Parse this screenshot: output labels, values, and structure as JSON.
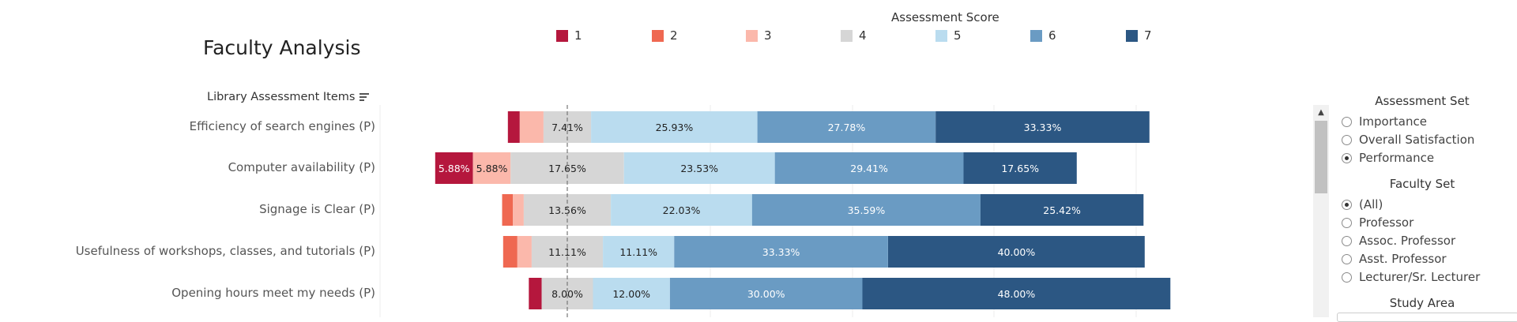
{
  "title": "Faculty Analysis",
  "legend": {
    "title": "Assessment Score",
    "items": [
      {
        "label": "1",
        "color": "#b5173d"
      },
      {
        "label": "2",
        "color": "#ef6851"
      },
      {
        "label": "3",
        "color": "#fbb8ab"
      },
      {
        "label": "4",
        "color": "#d6d6d6"
      },
      {
        "label": "5",
        "color": "#badcef"
      },
      {
        "label": "6",
        "color": "#6a9bc3"
      },
      {
        "label": "7",
        "color": "#2c5783"
      }
    ]
  },
  "rows_header": "Library Assessment Items",
  "chart_data": {
    "type": "bar",
    "orientation": "horizontal",
    "stacked": true,
    "diverging": true,
    "categories": [
      "Efficiency of search engines (P)",
      "Computer availability (P)",
      "Signage is Clear (P)",
      "Usefulness of workshops, classes, and tutorials (P)",
      "Opening hours meet my needs (P)"
    ],
    "series": [
      {
        "name": "1",
        "values": [
          1.85,
          5.88,
          0.0,
          0.0,
          2.0
        ]
      },
      {
        "name": "2",
        "values": [
          0.0,
          0.0,
          1.69,
          2.22,
          0.0
        ]
      },
      {
        "name": "3",
        "values": [
          3.7,
          5.88,
          1.69,
          2.22,
          0.0
        ]
      },
      {
        "name": "4",
        "values": [
          7.41,
          17.65,
          13.56,
          11.11,
          8.0
        ]
      },
      {
        "name": "5",
        "values": [
          25.93,
          23.53,
          22.03,
          11.11,
          12.0
        ]
      },
      {
        "name": "6",
        "values": [
          27.78,
          29.41,
          35.59,
          33.33,
          30.0
        ]
      },
      {
        "name": "7",
        "values": [
          33.33,
          17.65,
          25.42,
          40.0,
          48.0
        ]
      }
    ],
    "data_labels": [
      [
        "",
        "",
        "",
        "7.41%",
        "25.93%",
        "27.78%",
        "33.33%"
      ],
      [
        "5.88%",
        "",
        "5.88%",
        "17.65%",
        "23.53%",
        "29.41%",
        "17.65%"
      ],
      [
        "",
        "",
        "",
        "13.56%",
        "22.03%",
        "35.59%",
        "25.42%"
      ],
      [
        "",
        "",
        "",
        "11.11%",
        "11.11%",
        "33.33%",
        "40.00%"
      ],
      [
        "",
        "",
        "",
        "8.00%",
        "12.00%",
        "30.00%",
        "48.00%"
      ]
    ],
    "zero_line": "dashed, through middle of score 4"
  },
  "panel": {
    "assessment_set": {
      "title": "Assessment Set",
      "options": [
        "Importance",
        "Overall Satisfaction",
        "Performance"
      ],
      "selected": "Performance"
    },
    "faculty_set": {
      "title": "Faculty Set",
      "options": [
        "(All)",
        "Professor",
        "Assoc. Professor",
        "Asst. Professor",
        "Lecturer/Sr. Lecturer"
      ],
      "selected": "(All)"
    },
    "study_area": {
      "title": "Study Area"
    },
    "scroll_up_icon": "triangle-up-icon"
  }
}
